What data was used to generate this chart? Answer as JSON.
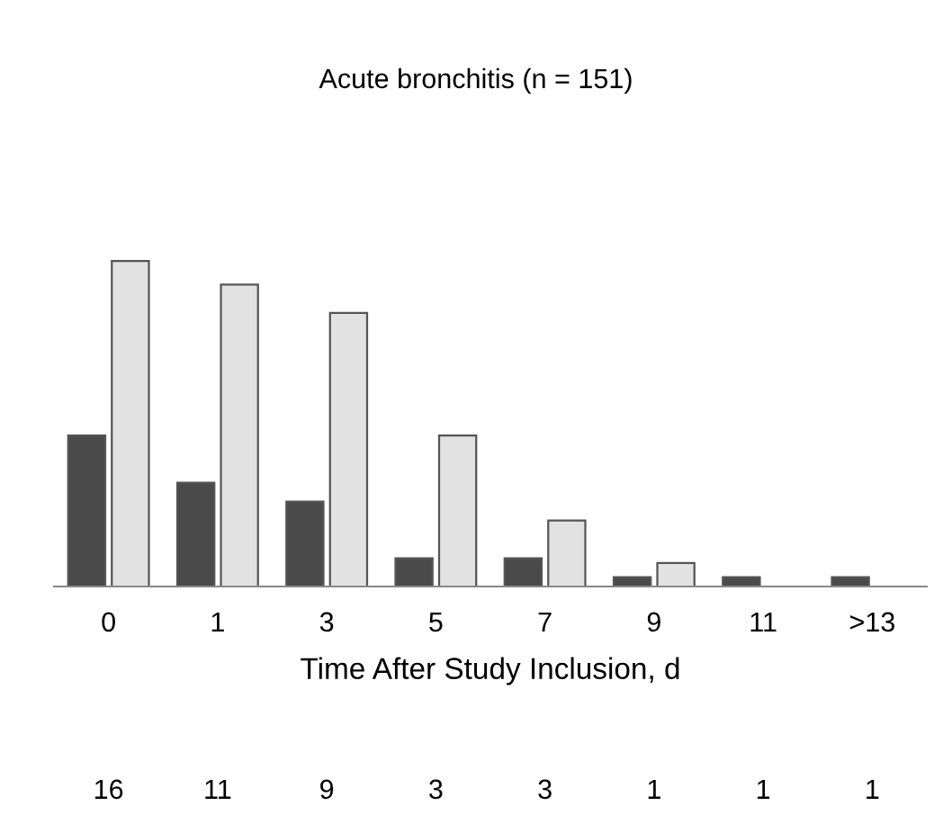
{
  "chart_data": {
    "type": "bar",
    "title": "Acute bronchitis (n = 151)",
    "xlabel": "Time After Study Inclusion, d",
    "categories": [
      "0",
      "1",
      "3",
      "5",
      "7",
      "9",
      "11",
      ">13"
    ],
    "series": [
      {
        "color": "#4a4a4a",
        "values": [
          16,
          11,
          9,
          3,
          3,
          1,
          1,
          1
        ],
        "value_labels": [
          "16",
          "11",
          "9",
          "3",
          "3",
          "1",
          "1",
          "1"
        ]
      },
      {
        "color": "#e2e2e2",
        "values": [
          34.5,
          32,
          29,
          16,
          7,
          2.5,
          null,
          null
        ]
      }
    ],
    "grid": false,
    "legend": false
  }
}
